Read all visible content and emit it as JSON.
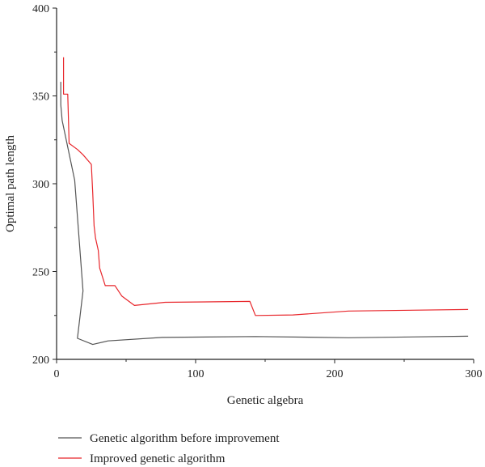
{
  "chart_data": {
    "type": "line",
    "xlabel": "Genetic algebra",
    "ylabel": "Optimal path length",
    "xlim": [
      0,
      300
    ],
    "ylim": [
      200,
      400
    ],
    "xticks": [
      0,
      100,
      200,
      300
    ],
    "yticks": [
      200,
      250,
      300,
      350,
      400
    ],
    "grid": false,
    "legend_position": "bottom-left below plot",
    "series": [
      {
        "name": "Genetic algorithm before improvement",
        "color": "#555555",
        "x": [
          3,
          3,
          4,
          13,
          19,
          15,
          26,
          37,
          76,
          143,
          210,
          296
        ],
        "y": [
          358,
          345,
          336,
          302,
          239,
          212,
          208.5,
          210.5,
          212.5,
          213,
          212.3,
          213.2
        ]
      },
      {
        "name": "Improved genetic algorithm",
        "color": "#e8262b",
        "x": [
          5,
          5,
          6,
          8,
          9,
          15,
          19,
          25,
          26,
          27,
          28,
          30,
          31,
          35,
          42,
          47,
          56,
          78,
          139,
          143,
          170,
          210,
          296
        ],
        "y": [
          372,
          351,
          351,
          351,
          323,
          319.5,
          316.5,
          311,
          295,
          276,
          269,
          262,
          252,
          242,
          242,
          236,
          230.7,
          232.5,
          233,
          225,
          225.3,
          227.5,
          228.4
        ]
      }
    ]
  }
}
